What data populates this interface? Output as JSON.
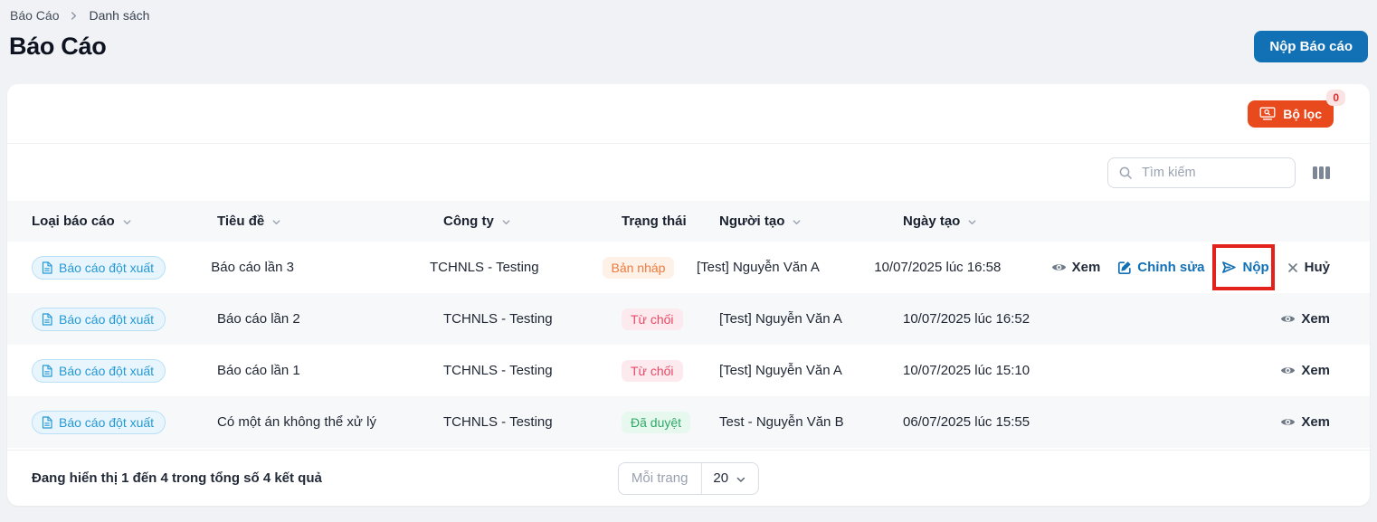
{
  "breadcrumb": {
    "items": [
      "Báo Cáo",
      "Danh sách"
    ]
  },
  "header": {
    "title": "Báo Cáo",
    "submit_button": "Nộp Báo cáo"
  },
  "toolbar": {
    "filter_button": "Bộ lọc",
    "filter_count": "0"
  },
  "search": {
    "placeholder": "Tìm kiếm"
  },
  "table": {
    "columns": [
      {
        "label": "Loại báo cáo",
        "sortable": true
      },
      {
        "label": "Tiêu đề",
        "sortable": true
      },
      {
        "label": "Công ty",
        "sortable": true
      },
      {
        "label": "Trạng thái",
        "sortable": false
      },
      {
        "label": "Người tạo",
        "sortable": true
      },
      {
        "label": "Ngày tạo",
        "sortable": true
      }
    ],
    "rows": [
      {
        "type": "Báo cáo đột xuất",
        "title": "Báo cáo lần 3",
        "company": "TCHNLS - Testing",
        "status": "Bản nháp",
        "status_kind": "draft",
        "creator": "[Test] Nguyễn Văn A",
        "created": "10/07/2025 lúc 16:58",
        "actions": [
          {
            "name": "view",
            "label": "Xem",
            "icon": "eye",
            "style": "dark"
          },
          {
            "name": "edit",
            "label": "Chỉnh sửa",
            "icon": "edit",
            "style": "blue"
          },
          {
            "name": "submit",
            "label": "Nộp",
            "icon": "send",
            "style": "blue",
            "annotated": true
          },
          {
            "name": "cancel",
            "label": "Huỷ",
            "icon": "close",
            "style": "dark"
          }
        ]
      },
      {
        "type": "Báo cáo đột xuất",
        "title": "Báo cáo lần 2",
        "company": "TCHNLS - Testing",
        "status": "Từ chối",
        "status_kind": "rejected",
        "creator": "[Test] Nguyễn Văn A",
        "created": "10/07/2025 lúc 16:52",
        "actions": [
          {
            "name": "view",
            "label": "Xem",
            "icon": "eye",
            "style": "dark"
          }
        ]
      },
      {
        "type": "Báo cáo đột xuất",
        "title": "Báo cáo lần 1",
        "company": "TCHNLS - Testing",
        "status": "Từ chối",
        "status_kind": "rejected",
        "creator": "[Test] Nguyễn Văn A",
        "created": "10/07/2025 lúc 15:10",
        "actions": [
          {
            "name": "view",
            "label": "Xem",
            "icon": "eye",
            "style": "dark"
          }
        ]
      },
      {
        "type": "Báo cáo đột xuất",
        "title": "Có một án không thể xử lý",
        "company": "TCHNLS - Testing",
        "status": "Đã duyệt",
        "status_kind": "approved",
        "creator": "Test - Nguyễn Văn B",
        "created": "06/07/2025 lúc 15:55",
        "actions": [
          {
            "name": "view",
            "label": "Xem",
            "icon": "eye",
            "style": "dark"
          }
        ]
      }
    ]
  },
  "footer": {
    "summary": "Đang hiển thị 1 đến 4 trong tổng số 4 kết quả",
    "per_page_label": "Mỗi trang",
    "per_page_value": "20"
  },
  "colors": {
    "primary_blue": "#1271b5",
    "filter_orange": "#e8491d",
    "annotation_red": "#e3211d",
    "type_badge_blue": "#2599d6",
    "status_draft": "#ee7b3e",
    "status_rejected": "#ea4864",
    "status_approved": "#2fa968",
    "page_background": "#f0f2f5"
  }
}
